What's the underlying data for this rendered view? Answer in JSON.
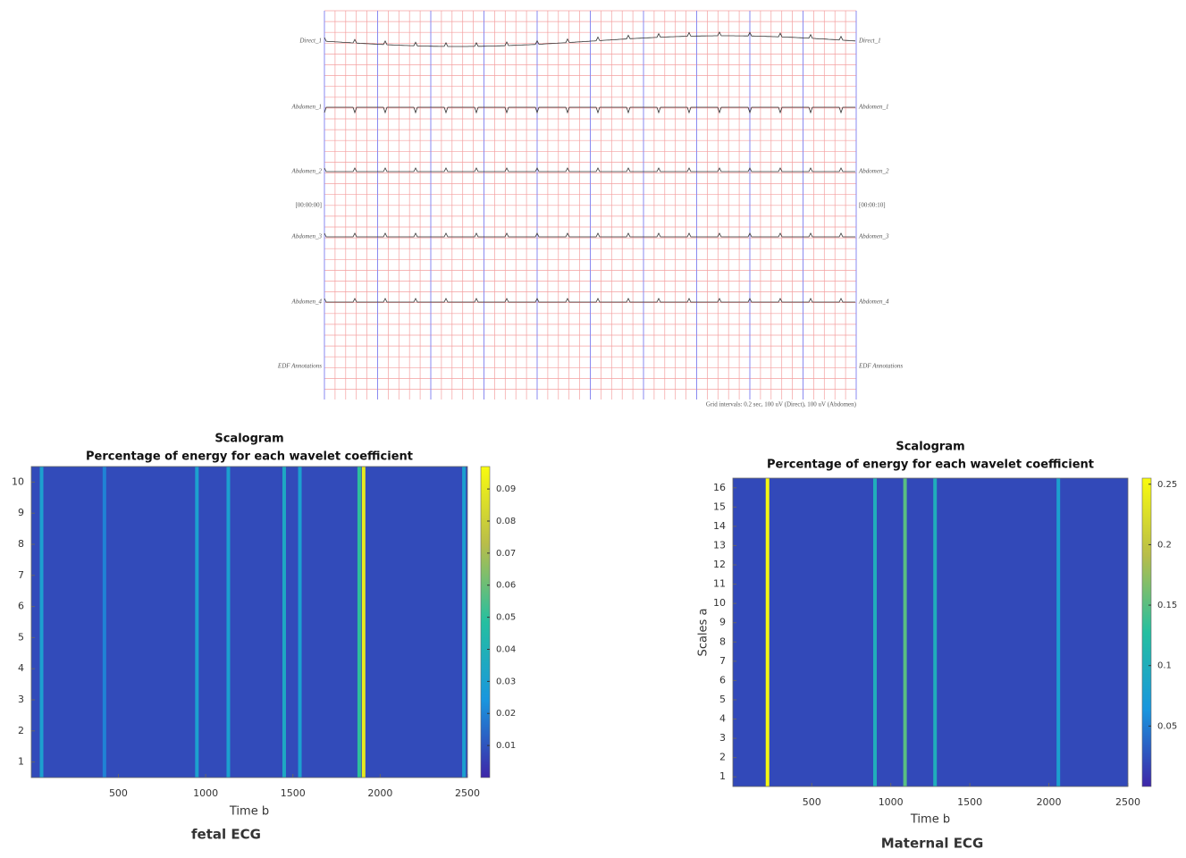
{
  "chart_data": [
    {
      "type": "ecg",
      "channels": [
        "Direct_1",
        "Abdomen_1",
        "Abdomen_2",
        "Abdomen_3",
        "Abdomen_4",
        "EDF Annotations"
      ],
      "start_label": "[00:00:00]",
      "end_label": "[00:00:10]",
      "footer": "Grid intervals: 0.2 sec, 100 uV (Direct), 100 uV (Abdomen)"
    },
    {
      "type": "heatmap",
      "title": "Scalogram",
      "subtitle": "Percentage of energy for each wavelet coefficient",
      "x_label": "Time b",
      "caption": "fetal ECG",
      "caption_color": "#ff2a2a",
      "colormap": "parula",
      "xlim": [
        1,
        2500
      ],
      "xticks": [
        500,
        1000,
        1500,
        2000,
        2500
      ],
      "ylim": [
        0.5,
        10.5
      ],
      "yticks": [
        1,
        2,
        3,
        4,
        5,
        6,
        7,
        8,
        9,
        10
      ],
      "clim": [
        0,
        0.097
      ],
      "cticks": [
        0.01,
        0.02,
        0.03,
        0.04,
        0.05,
        0.06,
        0.07,
        0.08,
        0.09
      ],
      "background": 0.008,
      "stripes": [
        {
          "x": 60,
          "value": 0.03
        },
        {
          "x": 420,
          "value": 0.02
        },
        {
          "x": 950,
          "value": 0.03
        },
        {
          "x": 1130,
          "value": 0.03
        },
        {
          "x": 1450,
          "value": 0.035
        },
        {
          "x": 1540,
          "value": 0.03
        },
        {
          "x": 1880,
          "value": 0.05
        },
        {
          "x": 1905,
          "value": 0.09
        },
        {
          "x": 2480,
          "value": 0.03
        }
      ]
    },
    {
      "type": "heatmap",
      "title": "Scalogram",
      "subtitle": "Percentage of energy for each wavelet coefficient",
      "x_label": "Time b",
      "y_label": "Scales a",
      "caption": "Maternal ECG",
      "caption_color": "#ff2a2a",
      "colormap": "parula",
      "xlim": [
        1,
        2500
      ],
      "xticks": [
        500,
        1000,
        1500,
        2000,
        2500
      ],
      "ylim": [
        0.5,
        16.5
      ],
      "yticks": [
        1,
        2,
        3,
        4,
        5,
        6,
        7,
        8,
        9,
        10,
        11,
        12,
        13,
        14,
        15,
        16
      ],
      "clim": [
        0,
        0.255
      ],
      "cticks": [
        0.05,
        0.1,
        0.15,
        0.2,
        0.25
      ],
      "background": 0.02,
      "stripes": [
        {
          "x": 220,
          "value": 0.25
        },
        {
          "x": 900,
          "value": 0.1
        },
        {
          "x": 1090,
          "value": 0.15
        },
        {
          "x": 1280,
          "value": 0.1
        },
        {
          "x": 2060,
          "value": 0.08
        }
      ]
    }
  ]
}
